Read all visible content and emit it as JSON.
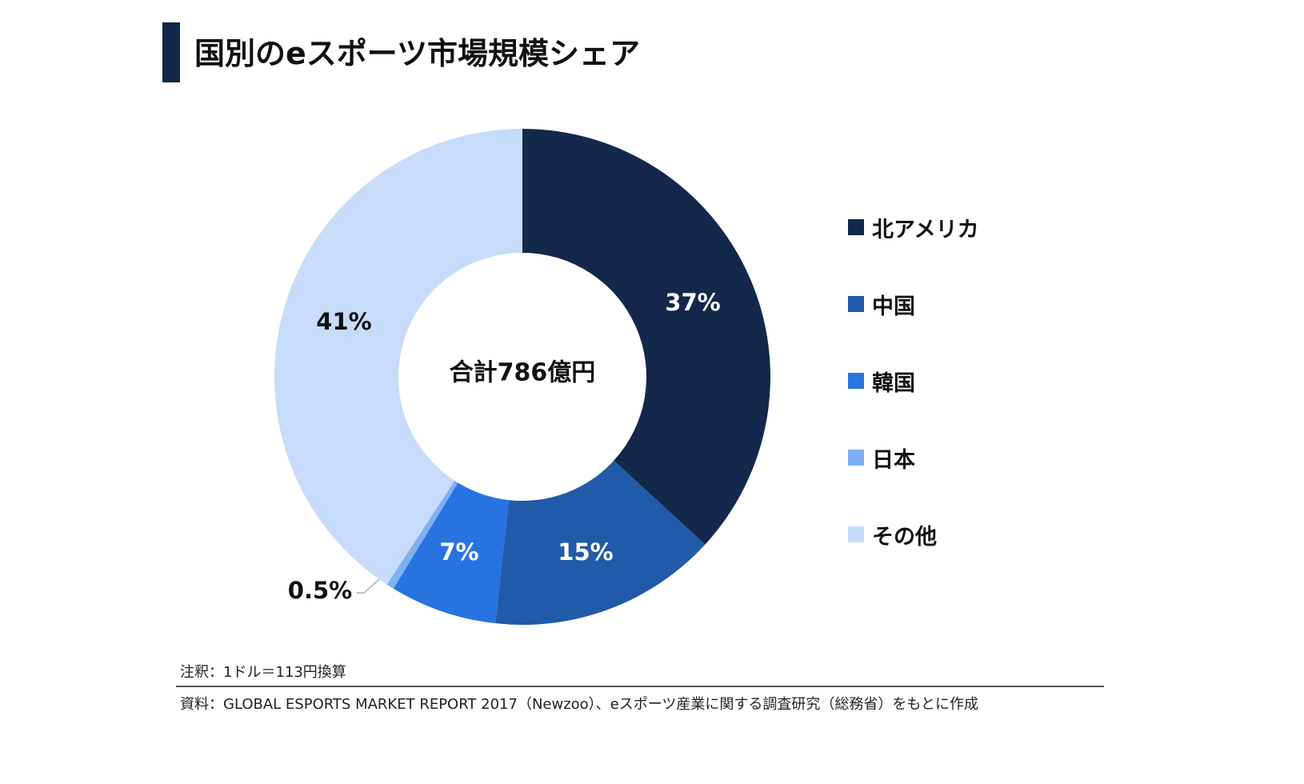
{
  "title": "国別のeスポーツ市場規模シェア",
  "chart_data": {
    "type": "pie",
    "subtype": "donut",
    "title": "国別のeスポーツ市場規模シェア",
    "center_label": "合計786億円",
    "categories": [
      "北アメリカ",
      "中国",
      "韓国",
      "日本",
      "その他"
    ],
    "values": [
      37,
      15,
      7,
      0.5,
      41
    ],
    "data_labels": [
      "37%",
      "15%",
      "7%",
      "0.5%",
      "41%"
    ],
    "colors": [
      "#13284a",
      "#215aa8",
      "#2774e0",
      "#7fb0f4",
      "#c7dcfb"
    ],
    "label_colors": [
      "#ffffff",
      "#ffffff",
      "#ffffff",
      "#111111",
      "#111111"
    ],
    "start": "top",
    "direction": "clockwise",
    "legend_position": "right"
  },
  "footer": {
    "note": "注釈：1ドル＝113円換算",
    "source": "資料：GLOBAL ESPORTS MARKET REPORT 2017（Newzoo）、eスポーツ産業に関する調査研究（総務省）をもとに作成"
  }
}
